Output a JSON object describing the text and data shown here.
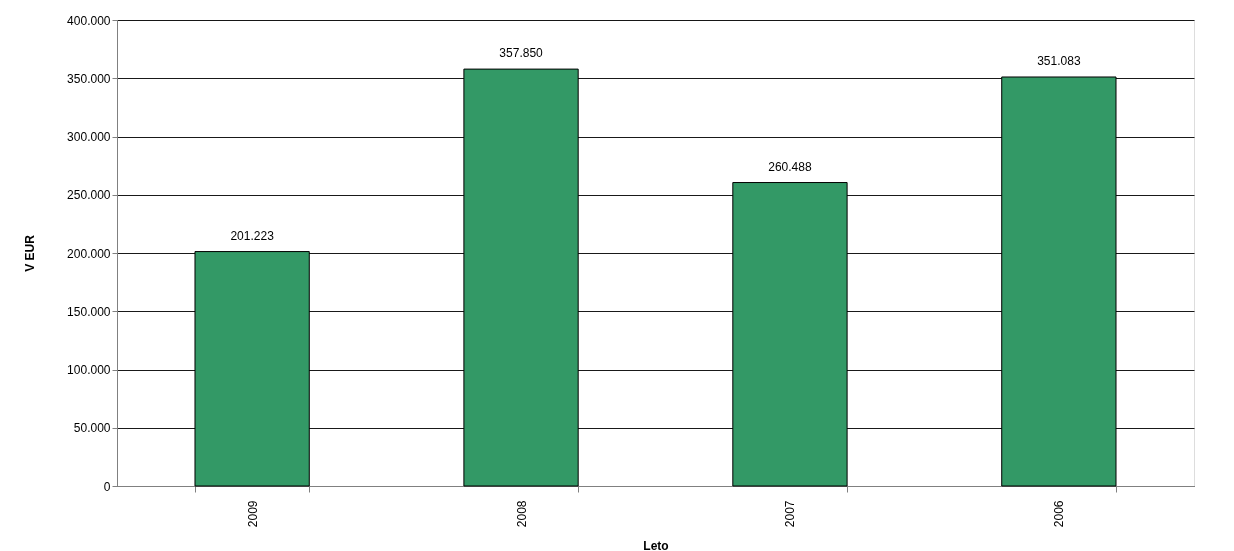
{
  "chart_data": {
    "type": "bar",
    "xlabel": "Leto",
    "ylabel": "V EUR",
    "categories": [
      "2009",
      "2008",
      "2007",
      "2006"
    ],
    "values": [
      201223,
      357850,
      260488,
      351083
    ],
    "value_labels": [
      "201.223",
      "357.850",
      "260.488",
      "351.083"
    ],
    "color": "#339966",
    "ylim": [
      0,
      400000
    ],
    "yticks": [
      0,
      {
        "value": 50000,
        "label": "50.000"
      },
      {
        "value": 100000,
        "label": "100.000"
      },
      {
        "value": 150000,
        "label": "150.000"
      },
      {
        "value": 200000,
        "label": "200.000"
      },
      {
        "value": 250000,
        "label": "250.000"
      },
      {
        "value": 300000,
        "label": "300.000"
      },
      {
        "value": 350000,
        "label": "350.000"
      },
      {
        "value": 400000,
        "label": "400.000"
      }
    ],
    "grid": "y"
  }
}
